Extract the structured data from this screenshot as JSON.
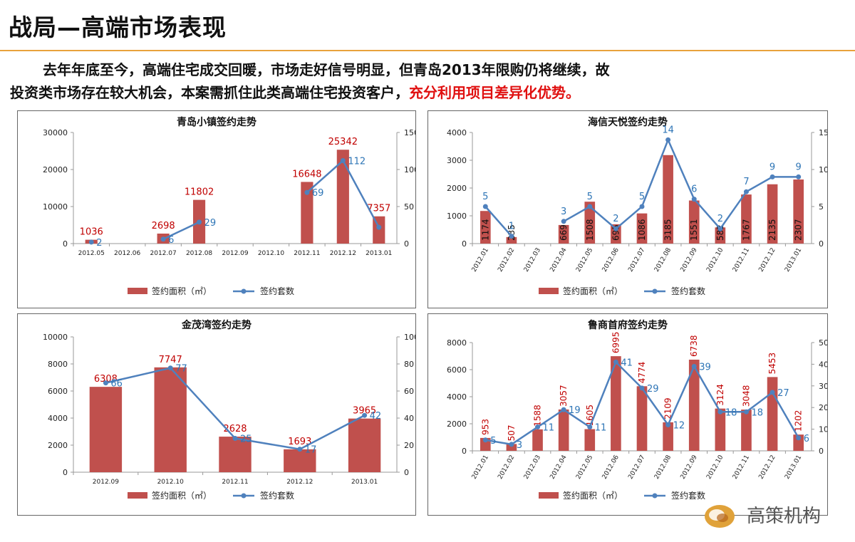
{
  "page": {
    "title": "战局—高端市场表现",
    "intro_line1": "去年年底至今，高端住宅成交回暖，市场走好信号明显，但青岛2013年限购仍将继续，故",
    "intro_line2": "投资类市场存在较大机会，本案需抓住此类高端住宅投资客户，",
    "intro_highlight": "充分利用项目差异化优势。",
    "logo_text": "高策机构"
  },
  "colors": {
    "bar": "#c0504d",
    "line": "#4f81bd",
    "bar_label": "#c00000",
    "line_label": "#2e75b6",
    "accent_rule": "#e8a23c"
  },
  "chart_data": [
    {
      "type": "bar+line",
      "title": "青岛小镇签约走势",
      "categories": [
        "2012.05",
        "2012.06",
        "2012.07",
        "2012.08",
        "2012.09",
        "2012.10",
        "2012.11",
        "2012.12",
        "2013.01"
      ],
      "series": [
        {
          "name": "签约面积（㎡）",
          "type": "bar",
          "axis": "left",
          "values": [
            1036,
            null,
            2698,
            11802,
            null,
            null,
            16648,
            25342,
            7357
          ]
        },
        {
          "name": "签约套数",
          "type": "line",
          "axis": "right",
          "values": [
            2,
            null,
            6,
            29,
            null,
            null,
            69,
            112,
            22
          ]
        }
      ],
      "line_labels": [
        "2",
        null,
        "6",
        "29",
        null,
        null,
        "69",
        "112",
        null
      ],
      "yleft_ticks": [
        0,
        10000,
        20000,
        30000
      ],
      "yleft_lim": [
        0,
        30000
      ],
      "yright_ticks": [
        0,
        50,
        100,
        150
      ],
      "yright_lim": [
        0,
        150
      ],
      "bar_label_pos": "above",
      "rotate_xticks": false,
      "legend": "bottom"
    },
    {
      "type": "bar+line",
      "title": "海信天悦签约走势",
      "categories": [
        "2012.01",
        "2012.02",
        "2012.03",
        "2012.04",
        "2012.05",
        "2012.06",
        "2012.07",
        "2012.08",
        "2012.09",
        "2012.10",
        "2012.11",
        "2012.12",
        "2013.01"
      ],
      "series": [
        {
          "name": "签约面积（㎡）",
          "type": "bar",
          "axis": "left",
          "values": [
            1174,
            235,
            null,
            669,
            1508,
            695,
            1086,
            3185,
            1551,
            582,
            1767,
            2135,
            2307
          ]
        },
        {
          "name": "签约套数",
          "type": "line",
          "axis": "right",
          "values": [
            5,
            1,
            null,
            3,
            5,
            2,
            5,
            14,
            6,
            2,
            7,
            9,
            9
          ]
        }
      ],
      "yleft_ticks": [
        0,
        1000,
        2000,
        3000,
        4000
      ],
      "yleft_lim": [
        0,
        4000
      ],
      "yright_ticks": [
        0,
        5,
        10,
        15
      ],
      "yright_lim": [
        0,
        15
      ],
      "bar_label_pos": "inside-vertical",
      "rotate_xticks": true,
      "legend": "bottom"
    },
    {
      "type": "bar+line",
      "title": "金茂湾签约走势",
      "categories": [
        "2012.09",
        "2012.10",
        "2012.11",
        "2012.12",
        "2013.01"
      ],
      "series": [
        {
          "name": "签约面积（㎡）",
          "type": "bar",
          "axis": "left",
          "values": [
            6308,
            7747,
            2628,
            1693,
            3965
          ]
        },
        {
          "name": "签约套数",
          "type": "line",
          "axis": "right",
          "values": [
            66,
            77,
            25,
            17,
            42
          ]
        }
      ],
      "yleft_ticks": [
        0,
        2000,
        4000,
        6000,
        8000,
        10000
      ],
      "yleft_lim": [
        0,
        10000
      ],
      "yright_ticks": [
        0,
        20,
        40,
        60,
        80,
        100
      ],
      "yright_lim": [
        0,
        100
      ],
      "bar_label_pos": "above",
      "rotate_xticks": false,
      "legend": "bottom"
    },
    {
      "type": "bar+line",
      "title": "鲁商首府签约走势",
      "categories": [
        "2012.01",
        "2012.02",
        "2012.03",
        "2012.04",
        "2012.05",
        "2012.06",
        "2012.07",
        "2012.08",
        "2012.09",
        "2012.10",
        "2012.11",
        "2012.12",
        "2013.01"
      ],
      "series": [
        {
          "name": "签约面积（㎡）",
          "type": "bar",
          "axis": "left",
          "values": [
            953,
            507,
            1588,
            3057,
            1605,
            6995,
            4774,
            2109,
            6738,
            3124,
            3048,
            5453,
            1202
          ]
        },
        {
          "name": "签约套数",
          "type": "line",
          "axis": "right",
          "values": [
            5,
            3,
            11,
            19,
            11,
            41,
            29,
            12,
            39,
            18,
            18,
            27,
            6
          ]
        }
      ],
      "yleft_ticks": [
        0,
        2000,
        4000,
        6000,
        8000
      ],
      "yleft_lim": [
        0,
        8000
      ],
      "yright_ticks": [
        0,
        10,
        20,
        30,
        40,
        50
      ],
      "yright_lim": [
        0,
        50
      ],
      "bar_label_pos": "above-vertical",
      "rotate_xticks": true,
      "legend": "bottom"
    }
  ]
}
